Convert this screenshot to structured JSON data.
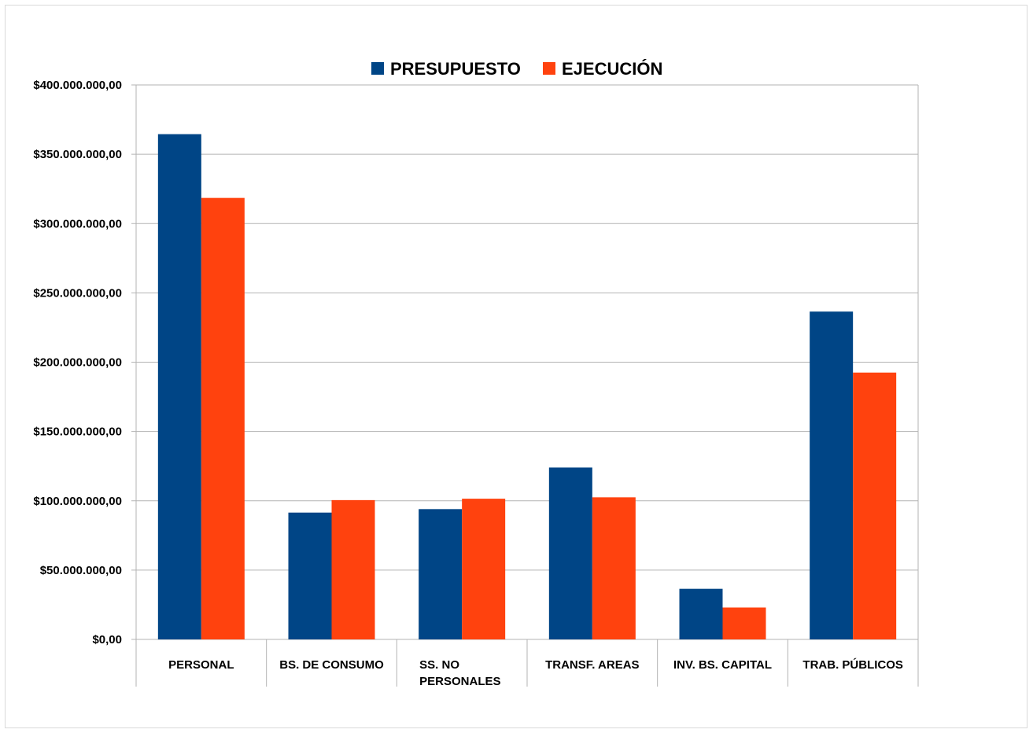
{
  "chart_data": {
    "type": "bar",
    "title": "",
    "xlabel": "",
    "ylabel": "",
    "categories": [
      [
        "PERSONAL"
      ],
      [
        "BS. DE CONSUMO"
      ],
      [
        "SS. NO",
        "PERSONALES"
      ],
      [
        "TRANSF. AREAS"
      ],
      [
        "INV. BS. CAPITAL"
      ],
      [
        "TRAB. PÚBLICOS"
      ]
    ],
    "series": [
      {
        "name": "PRESUPUESTO",
        "color": "#004586",
        "values": [
          364500000,
          91500000,
          94000000,
          124000000,
          36500000,
          236500000
        ]
      },
      {
        "name": "EJECUCIÓN",
        "color": "#ff420e",
        "values": [
          318500000,
          100500000,
          101500000,
          102500000,
          23000000,
          192500000
        ]
      }
    ],
    "ylim": [
      0,
      400000000
    ],
    "yticks": [
      {
        "value": 0,
        "label": "$0,00"
      },
      {
        "value": 50000000,
        "label": "$50.000.000,00"
      },
      {
        "value": 100000000,
        "label": "$100.000.000,00"
      },
      {
        "value": 150000000,
        "label": "$150.000.000,00"
      },
      {
        "value": 200000000,
        "label": "$200.000.000,00"
      },
      {
        "value": 250000000,
        "label": "$250.000.000,00"
      },
      {
        "value": 300000000,
        "label": "$300.000.000,00"
      },
      {
        "value": 350000000,
        "label": "$350.000.000,00"
      },
      {
        "value": 400000000,
        "label": "$400.000.000,00"
      }
    ],
    "grid": true,
    "legend_position": "top"
  }
}
